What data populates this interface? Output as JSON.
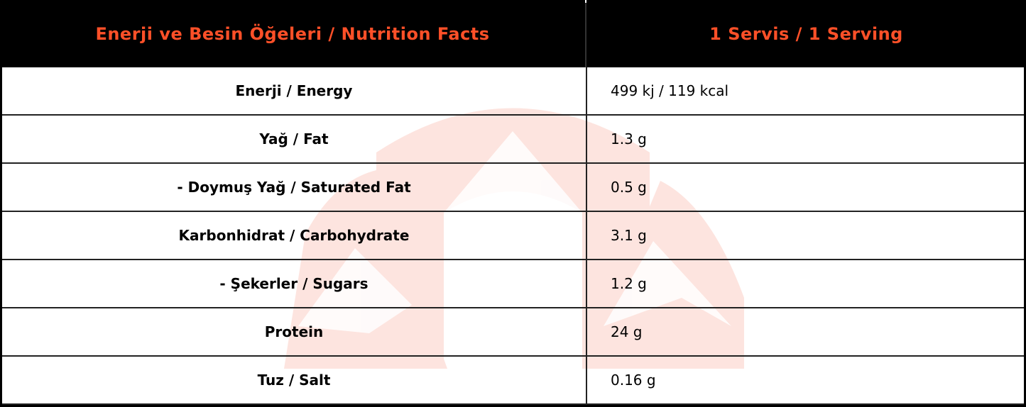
{
  "table": {
    "header": [
      "Enerji ve Besin Öğeleri / Nutrition Facts",
      "1 Servis / 1 Serving"
    ],
    "rows": [
      [
        "Enerji / Energy",
        "499 kj / 119 kcal"
      ],
      [
        "Yağ / Fat",
        "1.3 g"
      ],
      [
        "- Doymuş Yağ / Saturated Fat",
        "0.5 g"
      ],
      [
        "Karbonhidrat / Carbohydrate",
        "3.1 g"
      ],
      [
        "- Şekerler / Sugars",
        "1.2 g"
      ],
      [
        "Protein",
        "24 g"
      ],
      [
        "Tuz / Salt",
        "0.16 g"
      ]
    ]
  }
}
